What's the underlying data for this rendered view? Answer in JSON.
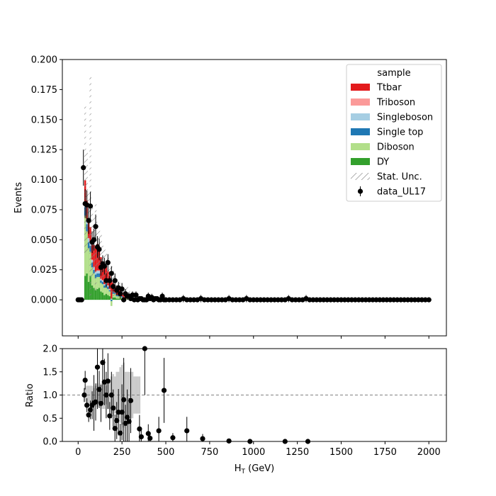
{
  "chart_data": {
    "type": "bar",
    "stacked": true,
    "xlabel": "H_T (GeV)",
    "xlabel_main": "H",
    "xlabel_sub": "T",
    "xlabel_rest": " (GeV)",
    "top": {
      "ylabel": "Events",
      "ylim": [
        -0.03,
        0.2
      ],
      "yticks": [
        "0.000",
        "0.025",
        "0.050",
        "0.075",
        "0.100",
        "0.125",
        "0.150",
        "0.175",
        "0.200"
      ],
      "ytick_values": [
        0,
        0.025,
        0.05,
        0.075,
        0.1,
        0.125,
        0.15,
        0.175,
        0.2
      ]
    },
    "bottom": {
      "ylabel": "Ratio",
      "ylim": [
        0,
        2
      ],
      "yticks": [
        "0.0",
        "0.5",
        "1.0",
        "1.5",
        "2.0"
      ],
      "ytick_values": [
        0,
        0.5,
        1.0,
        1.5,
        2.0
      ],
      "reference_line": 1.0
    },
    "xlim": [
      -90,
      2100
    ],
    "xticks": [
      "0",
      "250",
      "500",
      "750",
      "1000",
      "1250",
      "1500",
      "1750",
      "2000"
    ],
    "xtick_values": [
      0,
      250,
      500,
      750,
      1000,
      1250,
      1500,
      1750,
      2000
    ],
    "legend": {
      "title": "sample",
      "position": "top-right",
      "entries": [
        {
          "label": "Ttbar",
          "kind": "patch",
          "color": "#e31a1c"
        },
        {
          "label": "Triboson",
          "kind": "patch",
          "color": "#fb9a99"
        },
        {
          "label": "Singleboson",
          "kind": "patch",
          "color": "#a6cee3"
        },
        {
          "label": "Single top",
          "kind": "patch",
          "color": "#1f78b4"
        },
        {
          "label": "Diboson",
          "kind": "patch",
          "color": "#b2df8a"
        },
        {
          "label": "DY",
          "kind": "patch",
          "color": "#33a02c"
        },
        {
          "label": "Stat. Unc.",
          "kind": "hatch",
          "color": "#808080"
        },
        {
          "label": "data_UL17",
          "kind": "errorbar",
          "color": "#000000"
        }
      ]
    },
    "stack_bins": {
      "x": [
        40,
        50,
        60,
        70,
        80,
        90,
        100,
        110,
        120,
        130,
        140,
        150,
        160,
        170,
        180,
        190,
        200,
        210,
        220,
        230,
        240,
        250,
        260,
        270,
        280,
        290,
        300,
        310,
        320,
        330,
        340,
        350
      ],
      "series": [
        {
          "name": "DY",
          "color": "#33a02c",
          "values": [
            0.02,
            0.022,
            0.015,
            0.02,
            0.012,
            0.01,
            0.008,
            0.009,
            0.01,
            0.007,
            0.006,
            0.004,
            0.005,
            0.004,
            0.003,
            -0.005,
            0.002,
            0.002,
            0.001,
            0.001,
            0.001,
            0.001,
            0.0,
            0.0,
            0.0,
            0.0,
            0.0,
            0.0,
            0.0,
            0.0,
            0.0,
            0.0
          ]
        },
        {
          "name": "Diboson",
          "color": "#b2df8a",
          "values": [
            0.05,
            0.035,
            0.028,
            0.02,
            0.015,
            0.012,
            0.01,
            0.01,
            0.009,
            0.007,
            0.007,
            0.006,
            0.006,
            0.005,
            0.004,
            0.004,
            0.003,
            0.003,
            0.002,
            0.002,
            0.002,
            0.001,
            0.001,
            0.001,
            0.001,
            0.001,
            0.001,
            0.0,
            0.0,
            0.0,
            0.0,
            0.0
          ]
        },
        {
          "name": "Single top",
          "color": "#1f78b4",
          "values": [
            0.007,
            0.006,
            0.005,
            0.005,
            0.004,
            0.003,
            0.003,
            0.003,
            0.003,
            0.002,
            0.002,
            0.002,
            0.002,
            0.002,
            0.001,
            0.001,
            0.001,
            0.001,
            0.001,
            0.001,
            0.001,
            0.001,
            0.0,
            0.0,
            0.0,
            0.0,
            0.0,
            0.0,
            0.0,
            0.0,
            0.0,
            0.0
          ]
        },
        {
          "name": "Singleboson",
          "color": "#a6cee3",
          "values": [
            0.004,
            0.004,
            0.003,
            0.003,
            0.002,
            0.002,
            0.002,
            0.002,
            0.002,
            0.001,
            0.001,
            0.001,
            0.001,
            0.001,
            0.001,
            0.001,
            0.001,
            0.0,
            0.0,
            0.0,
            0.0,
            0.0,
            0.0,
            0.0,
            0.0,
            0.0,
            0.0,
            0.0,
            0.0,
            0.0,
            0.0,
            0.0
          ]
        },
        {
          "name": "Triboson",
          "color": "#fb9a99",
          "values": [
            0.0005,
            0.0005,
            0.0005,
            0.0005,
            0.0005,
            0.0005,
            0.0005,
            0.0005,
            0.0005,
            0.0005,
            0.0005,
            0.0,
            0.0,
            0.0,
            0.0,
            0.0,
            0.0,
            0.0,
            0.0,
            0.0,
            0.0,
            0.0,
            0.0,
            0.0,
            0.0,
            0.0,
            0.0,
            0.0,
            0.0,
            0.0,
            0.0,
            0.0
          ]
        },
        {
          "name": "Ttbar",
          "color": "#e31a1c",
          "values": [
            0.018,
            0.015,
            0.013,
            0.012,
            0.016,
            0.018,
            0.02,
            0.022,
            0.02,
            0.018,
            0.015,
            0.016,
            0.014,
            0.012,
            0.011,
            0.015,
            0.007,
            0.006,
            0.006,
            0.004,
            0.005,
            0.003,
            0.003,
            0.002,
            0.002,
            0.002,
            0.001,
            0.001,
            0.001,
            0.001,
            0.001,
            0.001
          ]
        }
      ],
      "unc_up": [
        0.162,
        0.125,
        0.09,
        0.187,
        0.08,
        0.07,
        0.082,
        0.065,
        0.06,
        0.055,
        0.045,
        0.045,
        0.04,
        0.035,
        0.03,
        0.03,
        0.025,
        0.02,
        0.018,
        0.016,
        0.014,
        0.012,
        0.01,
        0.01,
        0.012,
        0.008,
        0.007,
        0.006,
        0.006,
        0.005,
        0.005,
        0.004
      ]
    },
    "data_points": {
      "name": "data_UL17",
      "x": [
        0,
        10,
        20,
        30,
        40,
        50,
        60,
        70,
        80,
        90,
        100,
        110,
        120,
        130,
        140,
        150,
        160,
        170,
        180,
        190,
        200,
        210,
        220,
        230,
        240,
        250,
        260,
        270,
        280,
        290,
        300,
        310,
        320,
        330,
        340,
        350,
        360,
        370,
        380,
        390,
        400,
        410,
        420,
        430,
        440,
        450,
        460,
        470,
        480,
        490,
        500,
        520,
        540,
        560,
        580,
        600,
        620,
        640,
        660,
        680,
        700,
        720,
        740,
        760,
        780,
        800,
        820,
        840,
        860,
        880,
        900,
        920,
        940,
        960,
        980,
        1000,
        1020,
        1040,
        1060,
        1080,
        1100,
        1120,
        1140,
        1160,
        1180,
        1200,
        1220,
        1240,
        1260,
        1280,
        1300,
        1320,
        1340,
        1360,
        1380,
        1400,
        1420,
        1440,
        1460,
        1480,
        1500,
        1520,
        1540,
        1560,
        1580,
        1600,
        1620,
        1640,
        1660,
        1680,
        1700,
        1720,
        1740,
        1760,
        1780,
        1800,
        1820,
        1840,
        1860,
        1880,
        1900,
        1920,
        1940,
        1960,
        1980,
        2000
      ],
      "y": [
        0,
        0,
        0,
        0.11,
        0.08,
        0.079,
        0.066,
        0.078,
        0.048,
        0.05,
        0.061,
        0.044,
        0.042,
        0.027,
        0.03,
        0.028,
        0.016,
        0.031,
        0.016,
        0.022,
        0.011,
        0.016,
        0.008,
        0.01,
        0.005,
        0.009,
        0,
        0.005,
        0.003,
        0.003,
        0.001,
        0.004,
        0,
        0.004,
        0,
        0.001,
        0.001,
        0,
        0,
        0,
        0.003,
        0.001,
        0.002,
        0,
        0.001,
        0.001,
        0,
        0,
        0.003,
        0,
        0,
        0,
        0,
        0,
        0,
        0.001,
        0,
        0,
        0,
        0,
        0.001,
        0,
        0,
        0,
        0,
        0,
        0,
        0,
        0.001,
        0,
        0,
        0,
        0,
        0.001,
        0,
        0,
        0,
        0,
        0,
        0,
        0,
        0,
        0,
        0,
        0,
        0.001,
        0,
        0,
        0,
        0,
        0.001,
        0,
        0,
        0,
        0,
        0,
        0,
        0,
        0,
        0,
        0,
        0,
        0,
        0,
        0,
        0,
        0,
        0,
        0,
        0,
        0,
        0,
        0,
        0,
        0,
        0,
        0,
        0,
        0,
        0,
        0,
        0,
        0,
        0,
        0,
        0
      ],
      "yerr": [
        0.002,
        0.002,
        0.002,
        0.015,
        0.012,
        0.012,
        0.011,
        0.012,
        0.009,
        0.009,
        0.01,
        0.009,
        0.009,
        0.007,
        0.007,
        0.007,
        0.006,
        0.007,
        0.006,
        0.006,
        0.005,
        0.006,
        0.004,
        0.005,
        0.004,
        0.005,
        0.002,
        0.004,
        0.003,
        0.003,
        0.002,
        0.003,
        0.002,
        0.003,
        0.002,
        0.002,
        0.002,
        0.002,
        0.002,
        0.002,
        0.003,
        0.002,
        0.003,
        0.002,
        0.002,
        0.002,
        0.002,
        0.002,
        0.003,
        0.002,
        0.002,
        0.002,
        0.002,
        0.002,
        0.002,
        0.003,
        0.002,
        0.002,
        0.002,
        0.002,
        0.003,
        0.002,
        0.002,
        0.002,
        0.002,
        0.002,
        0.002,
        0.002,
        0.003,
        0.002,
        0.002,
        0.002,
        0.002,
        0.003,
        0.002,
        0.002,
        0.002,
        0.002,
        0.002,
        0.002,
        0.002,
        0.002,
        0.002,
        0.002,
        0.002,
        0.003,
        0.002,
        0.002,
        0.002,
        0.002,
        0.003,
        0.002,
        0.002,
        0.002,
        0.002,
        0.002,
        0.002,
        0.002,
        0.002,
        0.002,
        0.002,
        0.002,
        0.002,
        0.002,
        0.002,
        0.002,
        0.002,
        0.002,
        0.002,
        0.002,
        0.002,
        0.002,
        0.002,
        0.002,
        0.002,
        0.002,
        0.002,
        0.002,
        0.002,
        0.002,
        0.002,
        0.002,
        0.002,
        0.002,
        0.002,
        0.002
      ]
    },
    "ratio_points": {
      "x": [
        35,
        40,
        50,
        60,
        70,
        80,
        90,
        100,
        110,
        120,
        130,
        140,
        150,
        160,
        170,
        180,
        190,
        200,
        210,
        220,
        230,
        240,
        250,
        260,
        270,
        280,
        290,
        300,
        350,
        360,
        380,
        400,
        410,
        460,
        490,
        540,
        620,
        710,
        860,
        980,
        1180,
        1310
      ],
      "y": [
        1.0,
        1.32,
        0.78,
        0.57,
        0.68,
        0.78,
        0.83,
        0.85,
        1.6,
        1.12,
        0.82,
        1.7,
        1.28,
        1.0,
        1.3,
        0.55,
        1.0,
        0.72,
        0.28,
        0.45,
        0.63,
        0.18,
        0.63,
        0.9,
        0.39,
        0.52,
        0.43,
        0.88,
        0.27,
        0.1,
        2.0,
        0.17,
        0.07,
        0.23,
        1.1,
        0.08,
        0.23,
        0.06,
        0.01,
        0.0,
        0.0,
        0.0
      ],
      "yerr": [
        0.15,
        0.2,
        0.15,
        0.15,
        0.2,
        0.3,
        0.6,
        0.4,
        0.9,
        0.4,
        0.4,
        0.9,
        0.5,
        0.5,
        0.6,
        0.3,
        0.5,
        0.4,
        0.3,
        0.4,
        0.5,
        0.2,
        0.6,
        0.9,
        0.4,
        0.6,
        0.5,
        0.7,
        0.3,
        0.2,
        1.0,
        0.2,
        0.1,
        0.3,
        0.7,
        0.1,
        0.3,
        0.1,
        0.05,
        0.02,
        0.02,
        0.02
      ]
    },
    "ratio_unc_band": {
      "x": [
        40,
        50,
        60,
        70,
        80,
        90,
        100,
        110,
        120,
        130,
        140,
        150,
        160,
        170,
        180,
        190,
        200,
        210,
        220,
        230,
        240,
        250,
        260,
        270,
        280,
        290,
        300,
        310,
        320,
        330,
        340,
        350
      ],
      "lo": [
        0.85,
        0.8,
        0.8,
        0.8,
        0.8,
        0.85,
        0.8,
        0.75,
        0.8,
        0.75,
        0.7,
        0.7,
        0.8,
        0.7,
        0.7,
        0.6,
        0.55,
        0.6,
        0.5,
        0.5,
        0.4,
        0.35,
        0.3,
        0.5,
        0.5,
        0.5,
        0.5,
        0.5,
        0.6,
        0.6,
        0.6,
        0.6
      ],
      "hi": [
        1.15,
        1.2,
        1.2,
        1.2,
        1.2,
        1.15,
        1.2,
        1.25,
        1.2,
        1.25,
        1.3,
        1.3,
        1.2,
        1.3,
        1.3,
        1.4,
        1.45,
        1.4,
        1.5,
        1.5,
        1.6,
        1.65,
        1.7,
        1.5,
        1.5,
        1.5,
        1.5,
        1.5,
        1.4,
        1.4,
        1.4,
        1.4
      ]
    }
  }
}
